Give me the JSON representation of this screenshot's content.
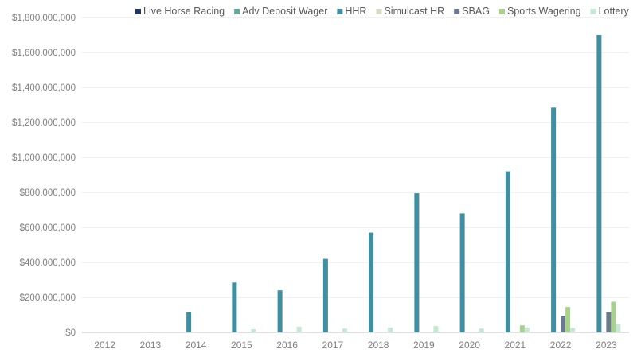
{
  "chart_data": {
    "type": "bar",
    "title": "",
    "xlabel": "",
    "ylabel": "",
    "categories": [
      "2012",
      "2013",
      "2014",
      "2015",
      "2016",
      "2017",
      "2018",
      "2019",
      "2020",
      "2021",
      "2022",
      "2023"
    ],
    "ylim": [
      0,
      1800000000
    ],
    "yticks": [
      0,
      200000000,
      400000000,
      600000000,
      800000000,
      1000000000,
      1200000000,
      1400000000,
      1600000000,
      1800000000
    ],
    "ytick_labels": [
      "$0",
      "$200,000,000",
      "$400,000,000",
      "$600,000,000",
      "$800,000,000",
      "$1,000,000,000",
      "$1,200,000,000",
      "$1,400,000,000",
      "$1,600,000,000",
      "$1,800,000,000"
    ],
    "grid": true,
    "legend_position": "top",
    "series": [
      {
        "name": "Live Horse Racing",
        "color": "#1f3864",
        "values": [
          0,
          0,
          0,
          0,
          0,
          0,
          0,
          0,
          0,
          0,
          0,
          0
        ]
      },
      {
        "name": "Adv Deposit Wager",
        "color": "#5fa89a",
        "values": [
          0,
          0,
          0,
          0,
          0,
          0,
          0,
          0,
          0,
          0,
          0,
          0
        ]
      },
      {
        "name": "HHR",
        "color": "#3f8fa0",
        "values": [
          0,
          0,
          115000000,
          285000000,
          240000000,
          420000000,
          570000000,
          795000000,
          680000000,
          920000000,
          1285000000,
          1700000000
        ]
      },
      {
        "name": "Simulcast HR",
        "color": "#d9d9c4",
        "values": [
          3000000,
          3000000,
          0,
          0,
          0,
          0,
          0,
          0,
          0,
          0,
          0,
          0
        ]
      },
      {
        "name": "SBAG",
        "color": "#6a7a8c",
        "values": [
          0,
          0,
          0,
          0,
          0,
          0,
          0,
          0,
          0,
          0,
          95000000,
          115000000
        ]
      },
      {
        "name": "Sports Wagering",
        "color": "#a9d18e",
        "values": [
          0,
          0,
          0,
          0,
          0,
          0,
          0,
          0,
          0,
          40000000,
          145000000,
          175000000
        ]
      },
      {
        "name": "Lottery",
        "color": "#c5e8d5",
        "values": [
          0,
          0,
          0,
          18000000,
          32000000,
          22000000,
          28000000,
          36000000,
          22000000,
          28000000,
          25000000,
          45000000
        ]
      }
    ]
  }
}
